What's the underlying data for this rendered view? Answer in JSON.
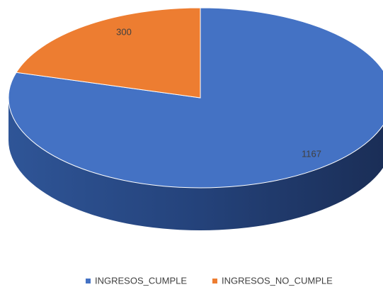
{
  "chart_data": {
    "type": "pie",
    "categories": [
      "INGRESOS_CUMPLE",
      "INGRESOS_NO_CUMPLE"
    ],
    "values": [
      1167,
      300
    ],
    "colors": [
      "#4472c4",
      "#ed7d31"
    ],
    "legend": "bottom"
  }
}
